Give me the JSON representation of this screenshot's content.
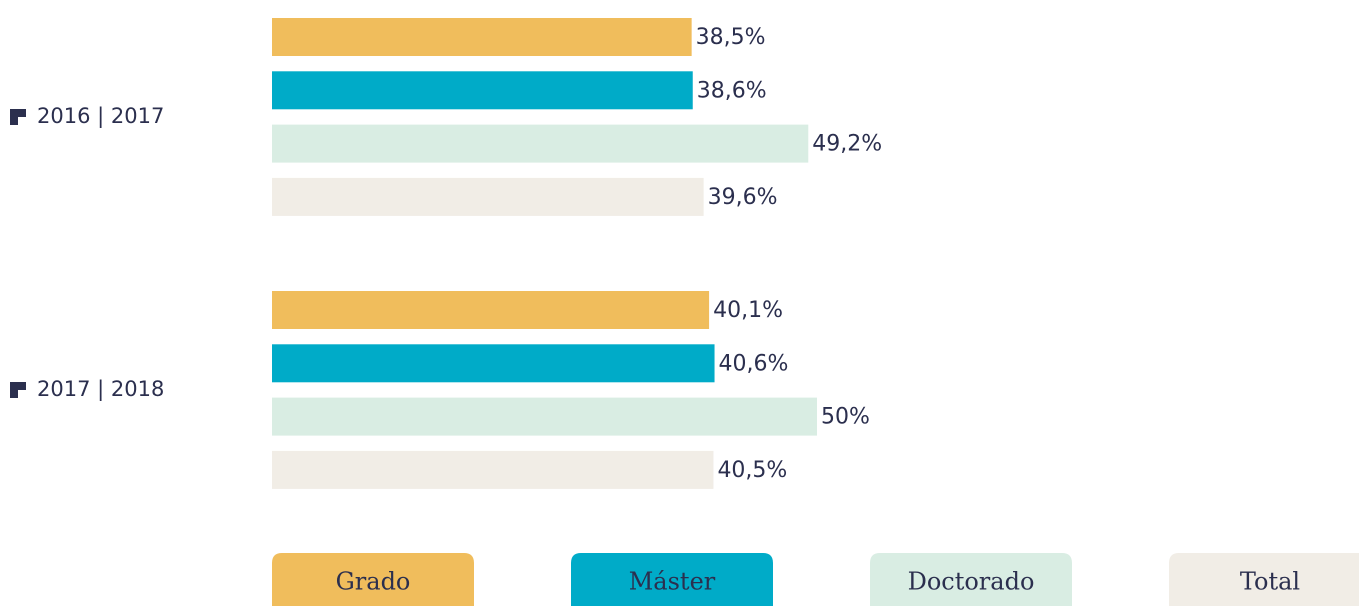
{
  "chart_data": {
    "type": "bar",
    "orientation": "horizontal",
    "categories": [
      "2016 | 2017",
      "2017 | 2018"
    ],
    "series": [
      {
        "name": "Grado",
        "color": "#f0bd5c",
        "values": [
          38.5,
          40.1
        ],
        "value_labels": [
          "38,5%",
          "40,1%"
        ]
      },
      {
        "name": "Máster",
        "color": "#00abc8",
        "values": [
          38.6,
          40.6
        ],
        "value_labels": [
          "38,6%",
          "40,6%"
        ]
      },
      {
        "name": "Doctorado",
        "color": "#d9ede3",
        "values": [
          49.2,
          50
        ],
        "value_labels": [
          "49,2%",
          "50%"
        ]
      },
      {
        "name": "Total",
        "color": "#f1ede6",
        "values": [
          39.6,
          40.5
        ],
        "value_labels": [
          "39,6%",
          "40,5%"
        ]
      }
    ]
  }
}
